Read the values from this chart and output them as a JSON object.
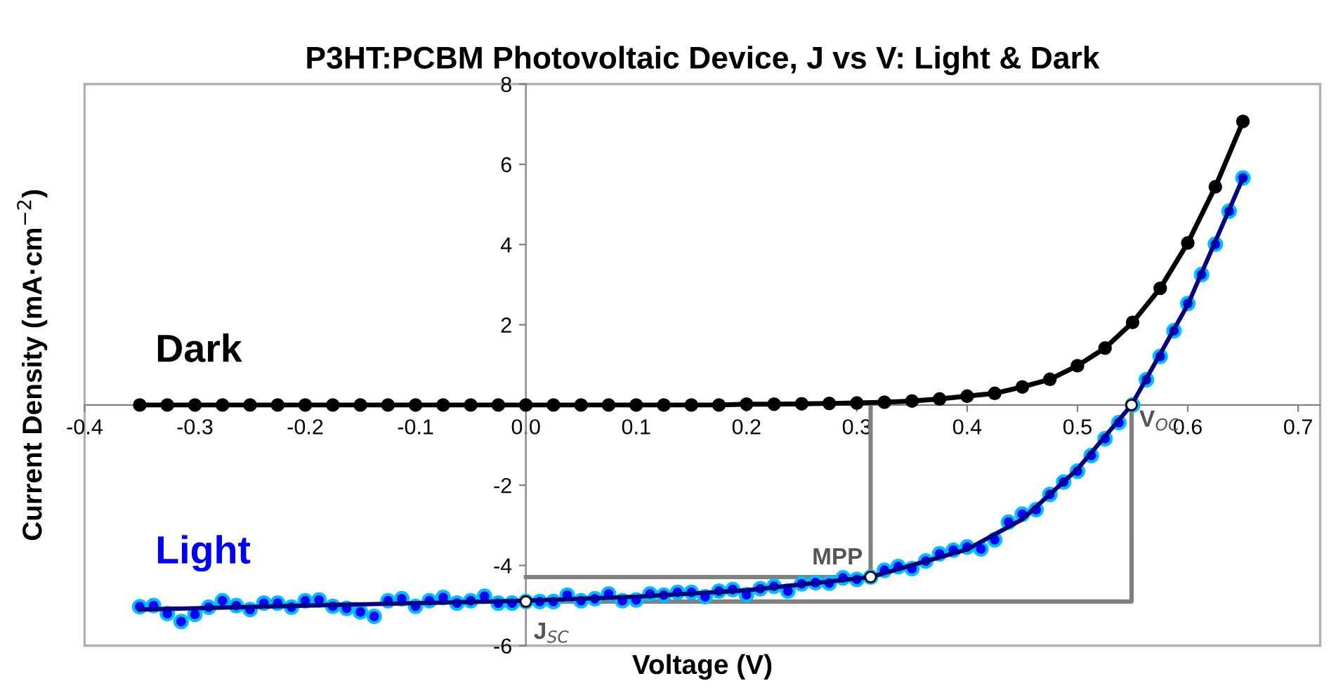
{
  "chart_data": {
    "type": "scatter",
    "title": "P3HT:PCBM Photovoltaic Device, J vs V: Light & Dark",
    "xlabel": "Voltage (V)",
    "ylabel": "Current Density (mA·cm$^{−2}$)",
    "xlim": [
      -0.4,
      0.72
    ],
    "xticks": [
      {
        "value": -0.4,
        "label": "-0.4"
      },
      {
        "value": -0.3,
        "label": "-0.3"
      },
      {
        "value": -0.2,
        "label": "-0.2"
      },
      {
        "value": -0.1,
        "label": "-0.1"
      },
      {
        "value": 0,
        "label": "0.0"
      },
      {
        "value": 0.1,
        "label": "0.1"
      },
      {
        "value": 0.2,
        "label": "0.2"
      },
      {
        "value": 0.3,
        "label": "0.3"
      },
      {
        "value": 0.4,
        "label": "0.4"
      },
      {
        "value": 0.5,
        "label": "0.5"
      },
      {
        "value": 0.6,
        "label": "0.6"
      },
      {
        "value": 0.7,
        "label": "0.7"
      }
    ],
    "ylim": [
      -6,
      8
    ],
    "yticks": [
      -6,
      -4,
      -2,
      {
        "value": 0,
        "label": null
      },
      2,
      4,
      6,
      8
    ],
    "grid": false,
    "legend": false,
    "series": [
      {
        "type": "line",
        "color": "#808080",
        "x": [
          0,
          0.3125,
          0.3125
        ],
        "values": [
          -4.29,
          -4.29,
          0
        ]
      },
      {
        "type": "line",
        "color": "#808080",
        "x": [
          0,
          0.549,
          0.549
        ],
        "values": [
          -4.9,
          -4.9,
          0
        ]
      },
      {
        "name": "Dark",
        "type": "line",
        "marker": "circle",
        "color": "#000000",
        "x": [
          -0.35,
          -0.325,
          -0.3,
          -0.275,
          -0.25,
          -0.225,
          -0.2,
          -0.175,
          -0.15,
          -0.125,
          -0.1,
          -0.075,
          -0.05,
          -0.025,
          0,
          0.025,
          0.05,
          0.075,
          0.1,
          0.125,
          0.15,
          0.175,
          0.2,
          0.225,
          0.25,
          0.275,
          0.3,
          0.325,
          0.35,
          0.375,
          0.4,
          0.425,
          0.45,
          0.475,
          0.5,
          0.525,
          0.55,
          0.575,
          0.6,
          0.625,
          0.65
        ],
        "values": [
          0,
          0,
          0,
          0,
          0,
          0,
          0,
          0,
          0,
          0,
          0,
          0,
          0,
          0,
          0,
          0,
          0,
          0,
          0,
          0,
          0,
          0,
          0.02,
          0.02,
          0.03,
          0.04,
          0.05,
          0.07,
          0.1,
          0.15,
          0.22,
          0.29,
          0.45,
          0.64,
          0.98,
          1.42,
          2.06,
          2.91,
          4.04,
          5.44,
          7.07
        ]
      },
      {
        "name": "Light",
        "marker": "circle",
        "color": "#0000ff",
        "x": [
          -0.35,
          -0.3375,
          -0.325,
          -0.3125,
          -0.3,
          -0.2875,
          -0.275,
          -0.2625,
          -0.25,
          -0.2375,
          -0.225,
          -0.2125,
          -0.2,
          -0.1875,
          -0.175,
          -0.1625,
          -0.15,
          -0.1375,
          -0.125,
          -0.1125,
          -0.1,
          -0.0875,
          -0.075,
          -0.0625,
          -0.05,
          -0.0375,
          -0.025,
          -0.0125,
          0,
          0.0125,
          0.025,
          0.0375,
          0.05,
          0.0625,
          0.075,
          0.0875,
          0.1,
          0.1125,
          0.125,
          0.1375,
          0.15,
          0.1625,
          0.175,
          0.1875,
          0.2,
          0.2125,
          0.225,
          0.2375,
          0.25,
          0.2625,
          0.275,
          0.2875,
          0.3,
          0.3125,
          0.325,
          0.3375,
          0.35,
          0.3625,
          0.375,
          0.3875,
          0.4,
          0.4125,
          0.425,
          0.4375,
          0.45,
          0.4625,
          0.475,
          0.4875,
          0.5,
          0.5125,
          0.525,
          0.5375,
          0.55,
          0.5625,
          0.575,
          0.5875,
          0.6,
          0.6125,
          0.625,
          0.6375,
          0.65
        ],
        "values": [
          -5.03,
          -5.0,
          -5.2,
          -5.4,
          -5.22,
          -5.04,
          -4.88,
          -5.0,
          -5.1,
          -4.94,
          -4.94,
          -5.04,
          -4.88,
          -4.86,
          -5.02,
          -5.07,
          -5.16,
          -5.27,
          -4.88,
          -4.83,
          -5.02,
          -4.88,
          -4.8,
          -4.94,
          -4.88,
          -4.77,
          -4.94,
          -4.94,
          -4.9,
          -4.9,
          -4.9,
          -4.74,
          -4.88,
          -4.83,
          -4.71,
          -4.88,
          -4.86,
          -4.71,
          -4.74,
          -4.67,
          -4.67,
          -4.78,
          -4.64,
          -4.6,
          -4.73,
          -4.58,
          -4.52,
          -4.64,
          -4.46,
          -4.43,
          -4.44,
          -4.31,
          -4.35,
          -4.29,
          -4.12,
          -4.03,
          -4.08,
          -3.89,
          -3.71,
          -3.62,
          -3.54,
          -3.59,
          -3.36,
          -2.92,
          -2.72,
          -2.61,
          -2.23,
          -1.92,
          -1.65,
          -1.26,
          -0.84,
          -0.44,
          0,
          0.63,
          1.21,
          1.85,
          2.53,
          3.25,
          4.01,
          4.83,
          5.66
        ]
      },
      {
        "type": "line",
        "color": "#000080",
        "x": [
          -0.35,
          -0.2,
          0,
          0.1,
          0.2,
          0.3125,
          0.4,
          0.45,
          0.5,
          0.549,
          0.6,
          0.65
        ],
        "values": [
          -5.1,
          -5.0,
          -4.88,
          -4.78,
          -4.62,
          -4.29,
          -3.6,
          -2.85,
          -1.6,
          0,
          2.5,
          5.66
        ]
      },
      {
        "marker": "circle",
        "color": "#ffffff",
        "x": [
          0,
          0.3125,
          0.549
        ],
        "values": [
          -4.9,
          -4.29,
          0
        ]
      }
    ],
    "annotations": [
      {
        "text": "J$_{SC}$",
        "x": 0,
        "y": -4.9
      },
      {
        "text": "MPP",
        "x": 0.3125,
        "y": -4.29
      },
      {
        "text": "V$_{OC}$",
        "x": 0.549,
        "y": 0
      }
    ]
  }
}
